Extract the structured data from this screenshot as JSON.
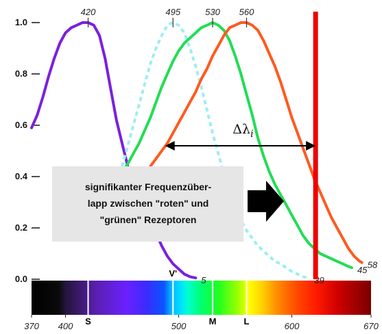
{
  "chart_data": {
    "type": "line",
    "xlim": [
      370,
      670
    ],
    "ylim": [
      0,
      1.0
    ],
    "y_ticks": [
      "1.0",
      "0.8",
      "0.6",
      "0.4",
      "0.2",
      "0.0"
    ],
    "x_ticks": [
      {
        "value": 370,
        "label": "370",
        "italic": true
      },
      {
        "value": 400,
        "label": "400",
        "italic": true
      },
      {
        "value": 500,
        "label": "500",
        "italic": false
      },
      {
        "value": 600,
        "label": "600",
        "italic": false
      },
      {
        "value": 670,
        "label": "670",
        "italic": true
      }
    ],
    "series": [
      {
        "key": "S",
        "peak": 420,
        "peak_label": "420",
        "end_label": "5",
        "color": "#7b1fe0",
        "dashed": false,
        "points": [
          [
            370,
            0.59
          ],
          [
            375,
            0.64
          ],
          [
            380,
            0.71
          ],
          [
            385,
            0.79
          ],
          [
            390,
            0.86
          ],
          [
            395,
            0.92
          ],
          [
            400,
            0.96
          ],
          [
            405,
            0.98
          ],
          [
            410,
            0.99
          ],
          [
            415,
            1.0
          ],
          [
            420,
            1.0
          ],
          [
            425,
            0.99
          ],
          [
            430,
            0.95
          ],
          [
            435,
            0.86
          ],
          [
            440,
            0.74
          ],
          [
            445,
            0.62
          ],
          [
            450,
            0.53
          ],
          [
            455,
            0.44
          ],
          [
            460,
            0.38
          ],
          [
            465,
            0.33
          ],
          [
            470,
            0.29
          ],
          [
            475,
            0.24
          ],
          [
            480,
            0.18
          ],
          [
            485,
            0.13
          ],
          [
            490,
            0.09
          ],
          [
            495,
            0.06
          ],
          [
            500,
            0.04
          ],
          [
            505,
            0.02
          ],
          [
            510,
            0.01
          ],
          [
            515,
            0.005
          ]
        ]
      },
      {
        "key": "rods",
        "peak": 495,
        "peak_label": "495",
        "end_label": "39",
        "color": "#9eeeee",
        "dashed": true,
        "points": [
          [
            440,
            0.3
          ],
          [
            445,
            0.37
          ],
          [
            450,
            0.44
          ],
          [
            455,
            0.52
          ],
          [
            460,
            0.6
          ],
          [
            465,
            0.68
          ],
          [
            470,
            0.76
          ],
          [
            475,
            0.84
          ],
          [
            480,
            0.9
          ],
          [
            485,
            0.95
          ],
          [
            490,
            0.99
          ],
          [
            495,
            1.0
          ],
          [
            500,
            0.99
          ],
          [
            505,
            0.96
          ],
          [
            510,
            0.9
          ],
          [
            515,
            0.83
          ],
          [
            520,
            0.75
          ],
          [
            525,
            0.66
          ],
          [
            530,
            0.57
          ],
          [
            535,
            0.49
          ],
          [
            540,
            0.41
          ],
          [
            545,
            0.34
          ],
          [
            550,
            0.28
          ],
          [
            555,
            0.23
          ],
          [
            560,
            0.19
          ],
          [
            565,
            0.16
          ],
          [
            570,
            0.13
          ],
          [
            575,
            0.11
          ],
          [
            580,
            0.09
          ],
          [
            585,
            0.07
          ],
          [
            590,
            0.06
          ],
          [
            595,
            0.045
          ],
          [
            600,
            0.03
          ],
          [
            605,
            0.02
          ],
          [
            610,
            0.01
          ],
          [
            615,
            0.005
          ]
        ]
      },
      {
        "key": "M",
        "peak": 530,
        "peak_label": "530",
        "end_label": "45",
        "color": "#22dd55",
        "dashed": false,
        "points": [
          [
            452,
            0.43
          ],
          [
            455,
            0.45
          ],
          [
            460,
            0.49
          ],
          [
            465,
            0.53
          ],
          [
            470,
            0.58
          ],
          [
            475,
            0.63
          ],
          [
            480,
            0.69
          ],
          [
            485,
            0.75
          ],
          [
            490,
            0.8
          ],
          [
            495,
            0.85
          ],
          [
            500,
            0.89
          ],
          [
            505,
            0.92
          ],
          [
            510,
            0.94
          ],
          [
            515,
            0.96
          ],
          [
            520,
            0.98
          ],
          [
            525,
            0.99
          ],
          [
            530,
            1.0
          ],
          [
            535,
            0.99
          ],
          [
            540,
            0.97
          ],
          [
            545,
            0.93
          ],
          [
            550,
            0.87
          ],
          [
            555,
            0.8
          ],
          [
            560,
            0.72
          ],
          [
            565,
            0.64
          ],
          [
            570,
            0.55
          ],
          [
            575,
            0.48
          ],
          [
            580,
            0.42
          ],
          [
            585,
            0.37
          ],
          [
            590,
            0.33
          ],
          [
            595,
            0.29
          ],
          [
            600,
            0.25
          ],
          [
            605,
            0.21
          ],
          [
            610,
            0.17
          ],
          [
            615,
            0.14
          ],
          [
            620,
            0.12
          ],
          [
            625,
            0.1
          ],
          [
            630,
            0.09
          ],
          [
            635,
            0.08
          ],
          [
            640,
            0.07
          ],
          [
            645,
            0.06
          ],
          [
            650,
            0.05
          ],
          [
            653,
            0.045
          ]
        ]
      },
      {
        "key": "L",
        "peak": 560,
        "peak_label": "560",
        "end_label": "58",
        "color": "#ff5a1f",
        "dashed": false,
        "points": [
          [
            472,
            0.42
          ],
          [
            475,
            0.44
          ],
          [
            480,
            0.47
          ],
          [
            485,
            0.5
          ],
          [
            490,
            0.53
          ],
          [
            495,
            0.57
          ],
          [
            500,
            0.61
          ],
          [
            505,
            0.65
          ],
          [
            510,
            0.69
          ],
          [
            515,
            0.73
          ],
          [
            520,
            0.78
          ],
          [
            525,
            0.82
          ],
          [
            530,
            0.87
          ],
          [
            535,
            0.91
          ],
          [
            540,
            0.95
          ],
          [
            545,
            0.98
          ],
          [
            550,
            0.99
          ],
          [
            555,
            1.0
          ],
          [
            560,
            1.0
          ],
          [
            565,
            0.99
          ],
          [
            570,
            0.97
          ],
          [
            575,
            0.93
          ],
          [
            580,
            0.88
          ],
          [
            585,
            0.83
          ],
          [
            590,
            0.77
          ],
          [
            595,
            0.7
          ],
          [
            600,
            0.63
          ],
          [
            605,
            0.57
          ],
          [
            610,
            0.51
          ],
          [
            615,
            0.45
          ],
          [
            620,
            0.39
          ],
          [
            625,
            0.34
          ],
          [
            630,
            0.29
          ],
          [
            635,
            0.24
          ],
          [
            640,
            0.2
          ],
          [
            645,
            0.16
          ],
          [
            650,
            0.12
          ],
          [
            655,
            0.09
          ],
          [
            660,
            0.07
          ],
          [
            662,
            0.065
          ]
        ]
      }
    ],
    "receptor_markers": [
      {
        "label": "S",
        "x": 420
      },
      {
        "label": "V'",
        "x": 495
      },
      {
        "label": "M",
        "x": 530
      },
      {
        "label": "L",
        "x": 560
      }
    ],
    "vertical_line": {
      "x": 621,
      "color": "#ee0000"
    },
    "delta_arrow": {
      "x_from": 488,
      "x_to": 621,
      "y": 0.52,
      "label": "Δλ",
      "subscript": "i"
    },
    "callout": {
      "lines": [
        "signifikanter Frequenzüber-",
        "lapp zwischen \"roten\" und",
        "\"grünen\" Rezeptoren"
      ],
      "background": "#e6e6e6"
    }
  }
}
